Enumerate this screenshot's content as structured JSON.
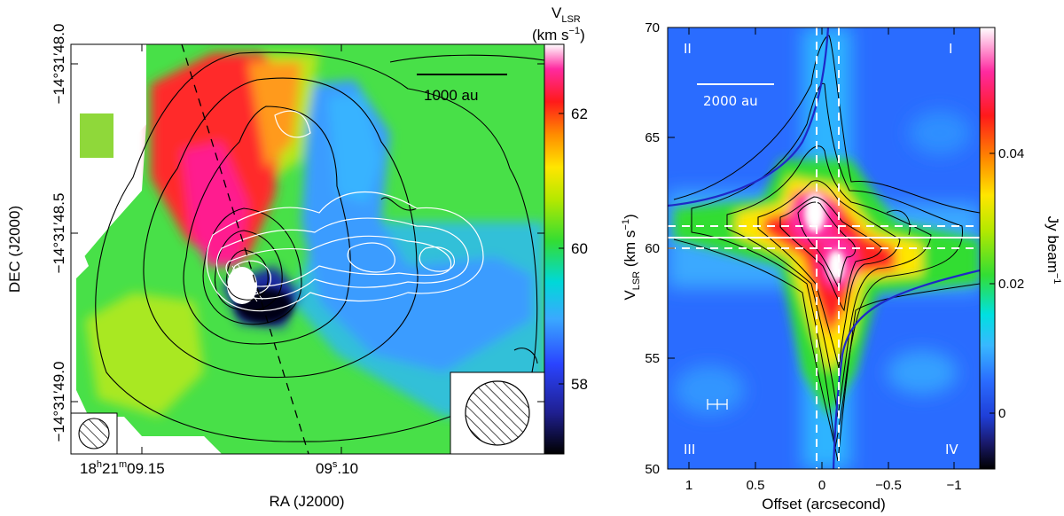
{
  "left_panel": {
    "x_axis_label": "RA (J2000)",
    "y_axis_label": "DEC (J2000)",
    "colorbar_label_line1": "V",
    "colorbar_label_sub": "LSR",
    "colorbar_label_line2": "(km s",
    "colorbar_label_exp": "−1",
    "colorbar_label_close": ")",
    "scale_bar_label": "1000 au",
    "x_tick_1_main": "18",
    "x_tick_1_h": "h",
    "x_tick_1_min": "21",
    "x_tick_1_m": "m",
    "x_tick_1_sec": "09.15",
    "x_tick_2_pre": "09",
    "x_tick_2_s": "s",
    "x_tick_2_post": ".10",
    "y_ticks": [
      "−14°31′48.0",
      "−14°31′48.5",
      "−14°31′49.0"
    ],
    "y_ticks_render": [
      "−14°31′48.0",
      "−14°31′48.5",
      "−14°31′49.0"
    ],
    "colorbar_ticks": [
      "62",
      "60",
      "58"
    ]
  },
  "right_panel": {
    "x_axis_label": "Offset (arcsecond)",
    "y_axis_label_main": "V",
    "y_axis_label_sub": "LSR",
    "y_axis_label_unit": " (km s",
    "y_axis_label_exp": "−1",
    "y_axis_label_close": ")",
    "colorbar_label": "Jy beam",
    "colorbar_label_exp": "−1",
    "scale_bar_label": "2000 au",
    "quadrant_labels": [
      "II",
      "I",
      "III",
      "IV"
    ],
    "x_ticks": [
      "1",
      "0.5",
      "0",
      "−0.5",
      "−1"
    ],
    "y_ticks": [
      "70",
      "65",
      "60",
      "55",
      "50"
    ],
    "colorbar_ticks": [
      "0.04",
      "0.02",
      "0"
    ]
  },
  "chart_data": [
    {
      "type": "heatmap",
      "panel": "left",
      "quantity": "V_LSR velocity field (km s^-1)",
      "colorbar_range": [
        56.7,
        63.3
      ],
      "colorbar_ticks": [
        62,
        60,
        58
      ],
      "xlabel": "RA (J2000)",
      "ylabel": "DEC (J2000)",
      "x_tick_labels": [
        "18h21m09.15",
        "09s.10"
      ],
      "y_tick_labels": [
        "−14°31′48.0",
        "−14°31′48.5",
        "−14°31′49.0"
      ],
      "overlays": [
        "black integrated-intensity contours",
        "white contours",
        "dashed line through peak",
        "scale bar 1000 au",
        "beam ellipses (two)"
      ],
      "colormap": [
        "#000000",
        "#1a1a8c",
        "#2236ff",
        "#3aa9ff",
        "#00e0e0",
        "#33dd33",
        "#a8e800",
        "#ffe600",
        "#ff8c00",
        "#ff1a1a",
        "#ff1a8c",
        "#ffffff"
      ]
    },
    {
      "type": "heatmap",
      "panel": "right",
      "quantity": "position-velocity diagram intensity (Jy beam^-1)",
      "xlabel": "Offset (arcsecond)",
      "ylabel": "V_LSR (km s^-1)",
      "xlim": [
        1.25,
        -1.2
      ],
      "ylim": [
        50,
        70
      ],
      "x_ticks": [
        1,
        0.5,
        0,
        -0.5,
        -1
      ],
      "y_ticks": [
        70,
        65,
        60,
        55,
        50
      ],
      "colorbar_range": [
        -0.007,
        0.058
      ],
      "colorbar_ticks": [
        0.04,
        0.02,
        0
      ],
      "reference_lines": {
        "vertical_offsets": [
          0.08,
          -0.08
        ],
        "horizontal_velocities": [
          60.9,
          59.9
        ],
        "style": "white dashed"
      },
      "peaks": [
        {
          "offset": 0.02,
          "velocity": 61.7
        },
        {
          "offset": -0.12,
          "velocity": 59.3
        }
      ],
      "overlays": [
        "blue Keplerian curves",
        "black contours",
        "quadrant labels I-IV",
        "scale bar 2000 au",
        "error bar"
      ]
    }
  ]
}
